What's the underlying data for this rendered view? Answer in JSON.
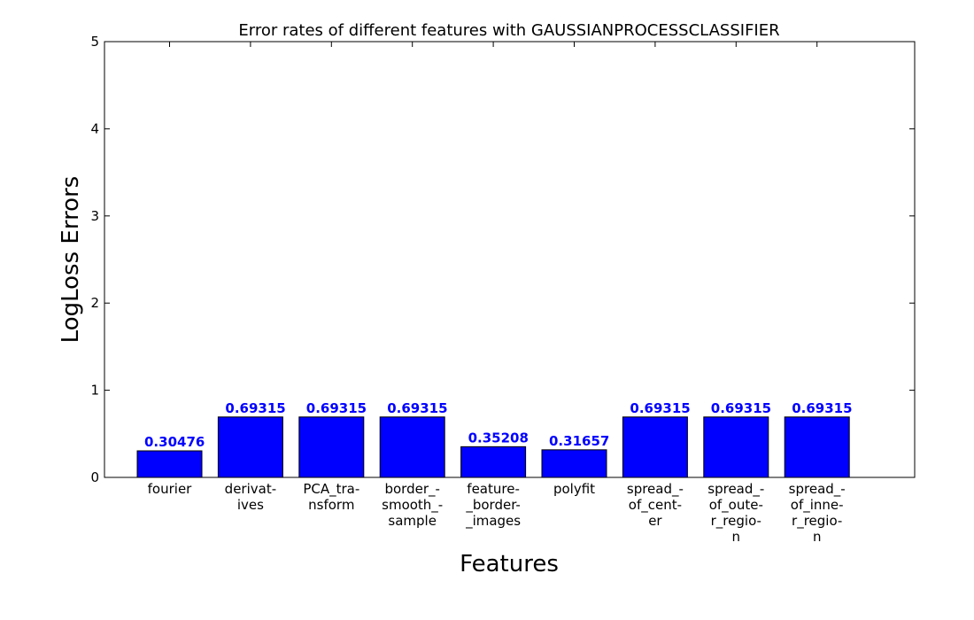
{
  "chart_data": {
    "type": "bar",
    "title": "Error rates of different features with GAUSSIANPROCESSCLASSIFIER",
    "xlabel": "Features",
    "ylabel": "LogLoss Errors",
    "ylim": [
      0,
      5
    ],
    "yticks": [
      "0",
      "1",
      "2",
      "3",
      "4",
      "5"
    ],
    "grid": false,
    "bar_color": "#0000ff",
    "categories": [
      [
        "fourier"
      ],
      [
        "derivat-",
        "ives"
      ],
      [
        "PCA_tra-",
        "nsform"
      ],
      [
        "border_-",
        "smooth_-",
        "sample"
      ],
      [
        "feature-",
        "_border-",
        "_images"
      ],
      [
        "polyfit"
      ],
      [
        "spread_-",
        "of_cent-",
        "er"
      ],
      [
        "spread_-",
        "of_oute-",
        "r_regio-",
        "n"
      ],
      [
        "spread_-",
        "of_inne-",
        "r_regio-",
        "n"
      ]
    ],
    "values": [
      0.30476,
      0.69315,
      0.69315,
      0.69315,
      0.35208,
      0.31657,
      0.69315,
      0.69315,
      0.69315
    ],
    "data_labels": [
      "0.30476",
      "0.69315",
      "0.69315",
      "0.69315",
      "0.35208",
      "0.31657",
      "0.69315",
      "0.69315",
      "0.69315"
    ]
  }
}
